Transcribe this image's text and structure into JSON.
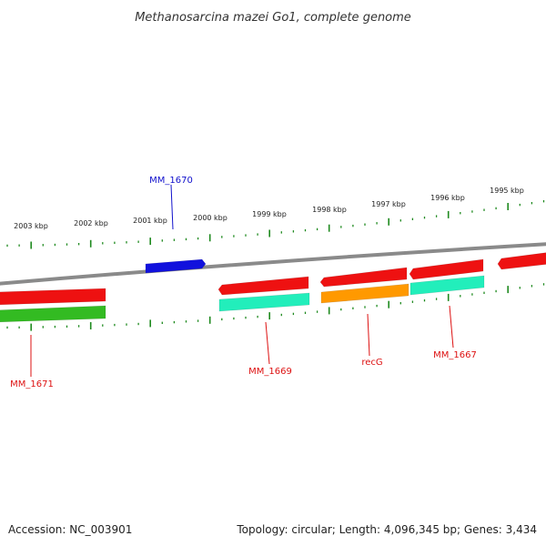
{
  "title": "Methanosarcina mazei Go1, complete genome",
  "footer": {
    "accession": "Accession: NC_003901",
    "summary": "Topology: circular; Length: 4,096,345 bp; Genes: 3,434"
  },
  "colors": {
    "backbone": "#8a8a8a",
    "tick": "#1f8a1f",
    "red": "#ee1111",
    "green": "#33bb22",
    "blue": "#1111dd",
    "teal": "#22eebb",
    "orange": "#ff9900",
    "label_red": "#dd1111",
    "label_blue": "#1111cc"
  },
  "ticks": [
    {
      "label": "2003 kbp"
    },
    {
      "label": "2002 kbp"
    },
    {
      "label": "2001 kbp"
    },
    {
      "label": "2000 kbp"
    },
    {
      "label": "1999 kbp"
    },
    {
      "label": "1998 kbp"
    },
    {
      "label": "1997 kbp"
    },
    {
      "label": "1996 kbp"
    },
    {
      "label": "1995 kbp"
    }
  ],
  "genes": [
    {
      "color": "red"
    },
    {
      "color": "green"
    },
    {
      "color": "blue"
    },
    {
      "color": "red"
    },
    {
      "color": "teal"
    },
    {
      "color": "red"
    },
    {
      "color": "orange"
    },
    {
      "color": "red"
    },
    {
      "color": "teal"
    },
    {
      "color": "red"
    }
  ],
  "labels": [
    {
      "text": "MM_1670",
      "color": "label_blue"
    },
    {
      "text": "MM_1671",
      "color": "label_red"
    },
    {
      "text": "MM_1669",
      "color": "label_red"
    },
    {
      "text": "recG",
      "color": "label_red"
    },
    {
      "text": "MM_1667",
      "color": "label_red"
    }
  ]
}
